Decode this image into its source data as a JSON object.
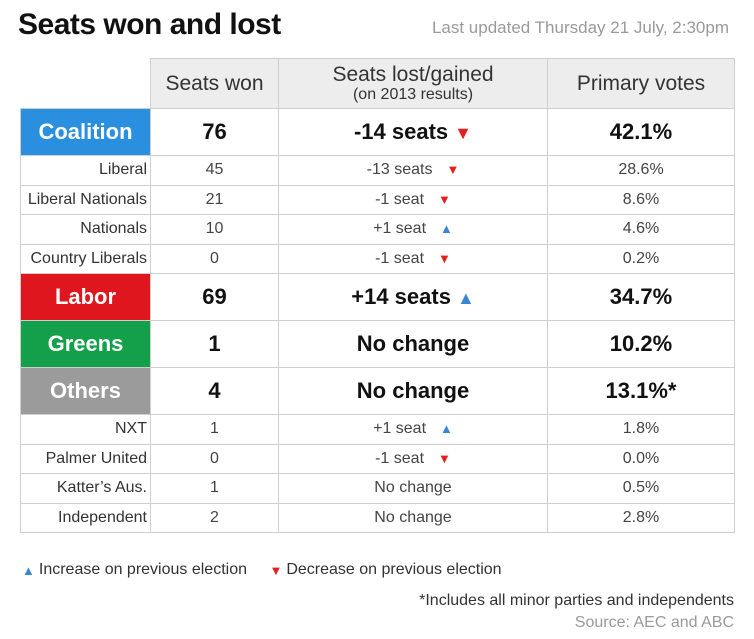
{
  "header": {
    "title": "Seats won and lost",
    "updated": "Last updated Thursday 21 July, 2:30pm"
  },
  "table": {
    "columns": {
      "seats_won": "Seats won",
      "change_main": "Seats lost/gained",
      "change_sub": "(on 2013 results)",
      "primary_votes": "Primary votes"
    },
    "rows": [
      {
        "kind": "major",
        "party": "Coalition",
        "color": "#2a8fde",
        "seats": "76",
        "change": "-14 seats",
        "direction": "down",
        "votes": "42.1%"
      },
      {
        "kind": "minor",
        "party": "Liberal",
        "seats": "45",
        "change": "-13 seats",
        "direction": "down",
        "votes": "28.6%"
      },
      {
        "kind": "minor",
        "party": "Liberal Nationals",
        "seats": "21",
        "change": "-1 seat",
        "direction": "down",
        "votes": "8.6%"
      },
      {
        "kind": "minor",
        "party": "Nationals",
        "seats": "10",
        "change": "+1 seat",
        "direction": "up",
        "votes": "4.6%"
      },
      {
        "kind": "minor",
        "party": "Country Liberals",
        "seats": "0",
        "change": "-1 seat",
        "direction": "down",
        "votes": "0.2%"
      },
      {
        "kind": "major",
        "party": "Labor",
        "color": "#e0161f",
        "seats": "69",
        "change": "+14 seats",
        "direction": "up",
        "votes": "34.7%"
      },
      {
        "kind": "major",
        "party": "Greens",
        "color": "#14a04a",
        "seats": "1",
        "change": "No change",
        "direction": "none",
        "votes": "10.2%"
      },
      {
        "kind": "major",
        "party": "Others",
        "color": "#9b9b9b",
        "seats": "4",
        "change": "No change",
        "direction": "none",
        "votes": "13.1%*"
      },
      {
        "kind": "minor",
        "party": "NXT",
        "seats": "1",
        "change": "+1 seat",
        "direction": "up",
        "votes": "1.8%"
      },
      {
        "kind": "minor",
        "party": "Palmer United",
        "seats": "0",
        "change": "-1 seat",
        "direction": "down",
        "votes": "0.0%"
      },
      {
        "kind": "minor",
        "party": "Katter’s Aus.",
        "seats": "1",
        "change": "No change",
        "direction": "none",
        "votes": "0.5%"
      },
      {
        "kind": "minor",
        "party": "Independent",
        "seats": "2",
        "change": "No change",
        "direction": "none",
        "votes": "2.8%"
      }
    ]
  },
  "legend": {
    "increase": "Increase on previous election",
    "decrease": "Decrease on previous election",
    "up_glyph": "▲",
    "down_glyph": "▼",
    "up_color": "#3a86d4",
    "down_color": "#e5201c"
  },
  "footer": {
    "footnote": "*Includes all minor parties and independents",
    "source": "Source: AEC and ABC"
  }
}
